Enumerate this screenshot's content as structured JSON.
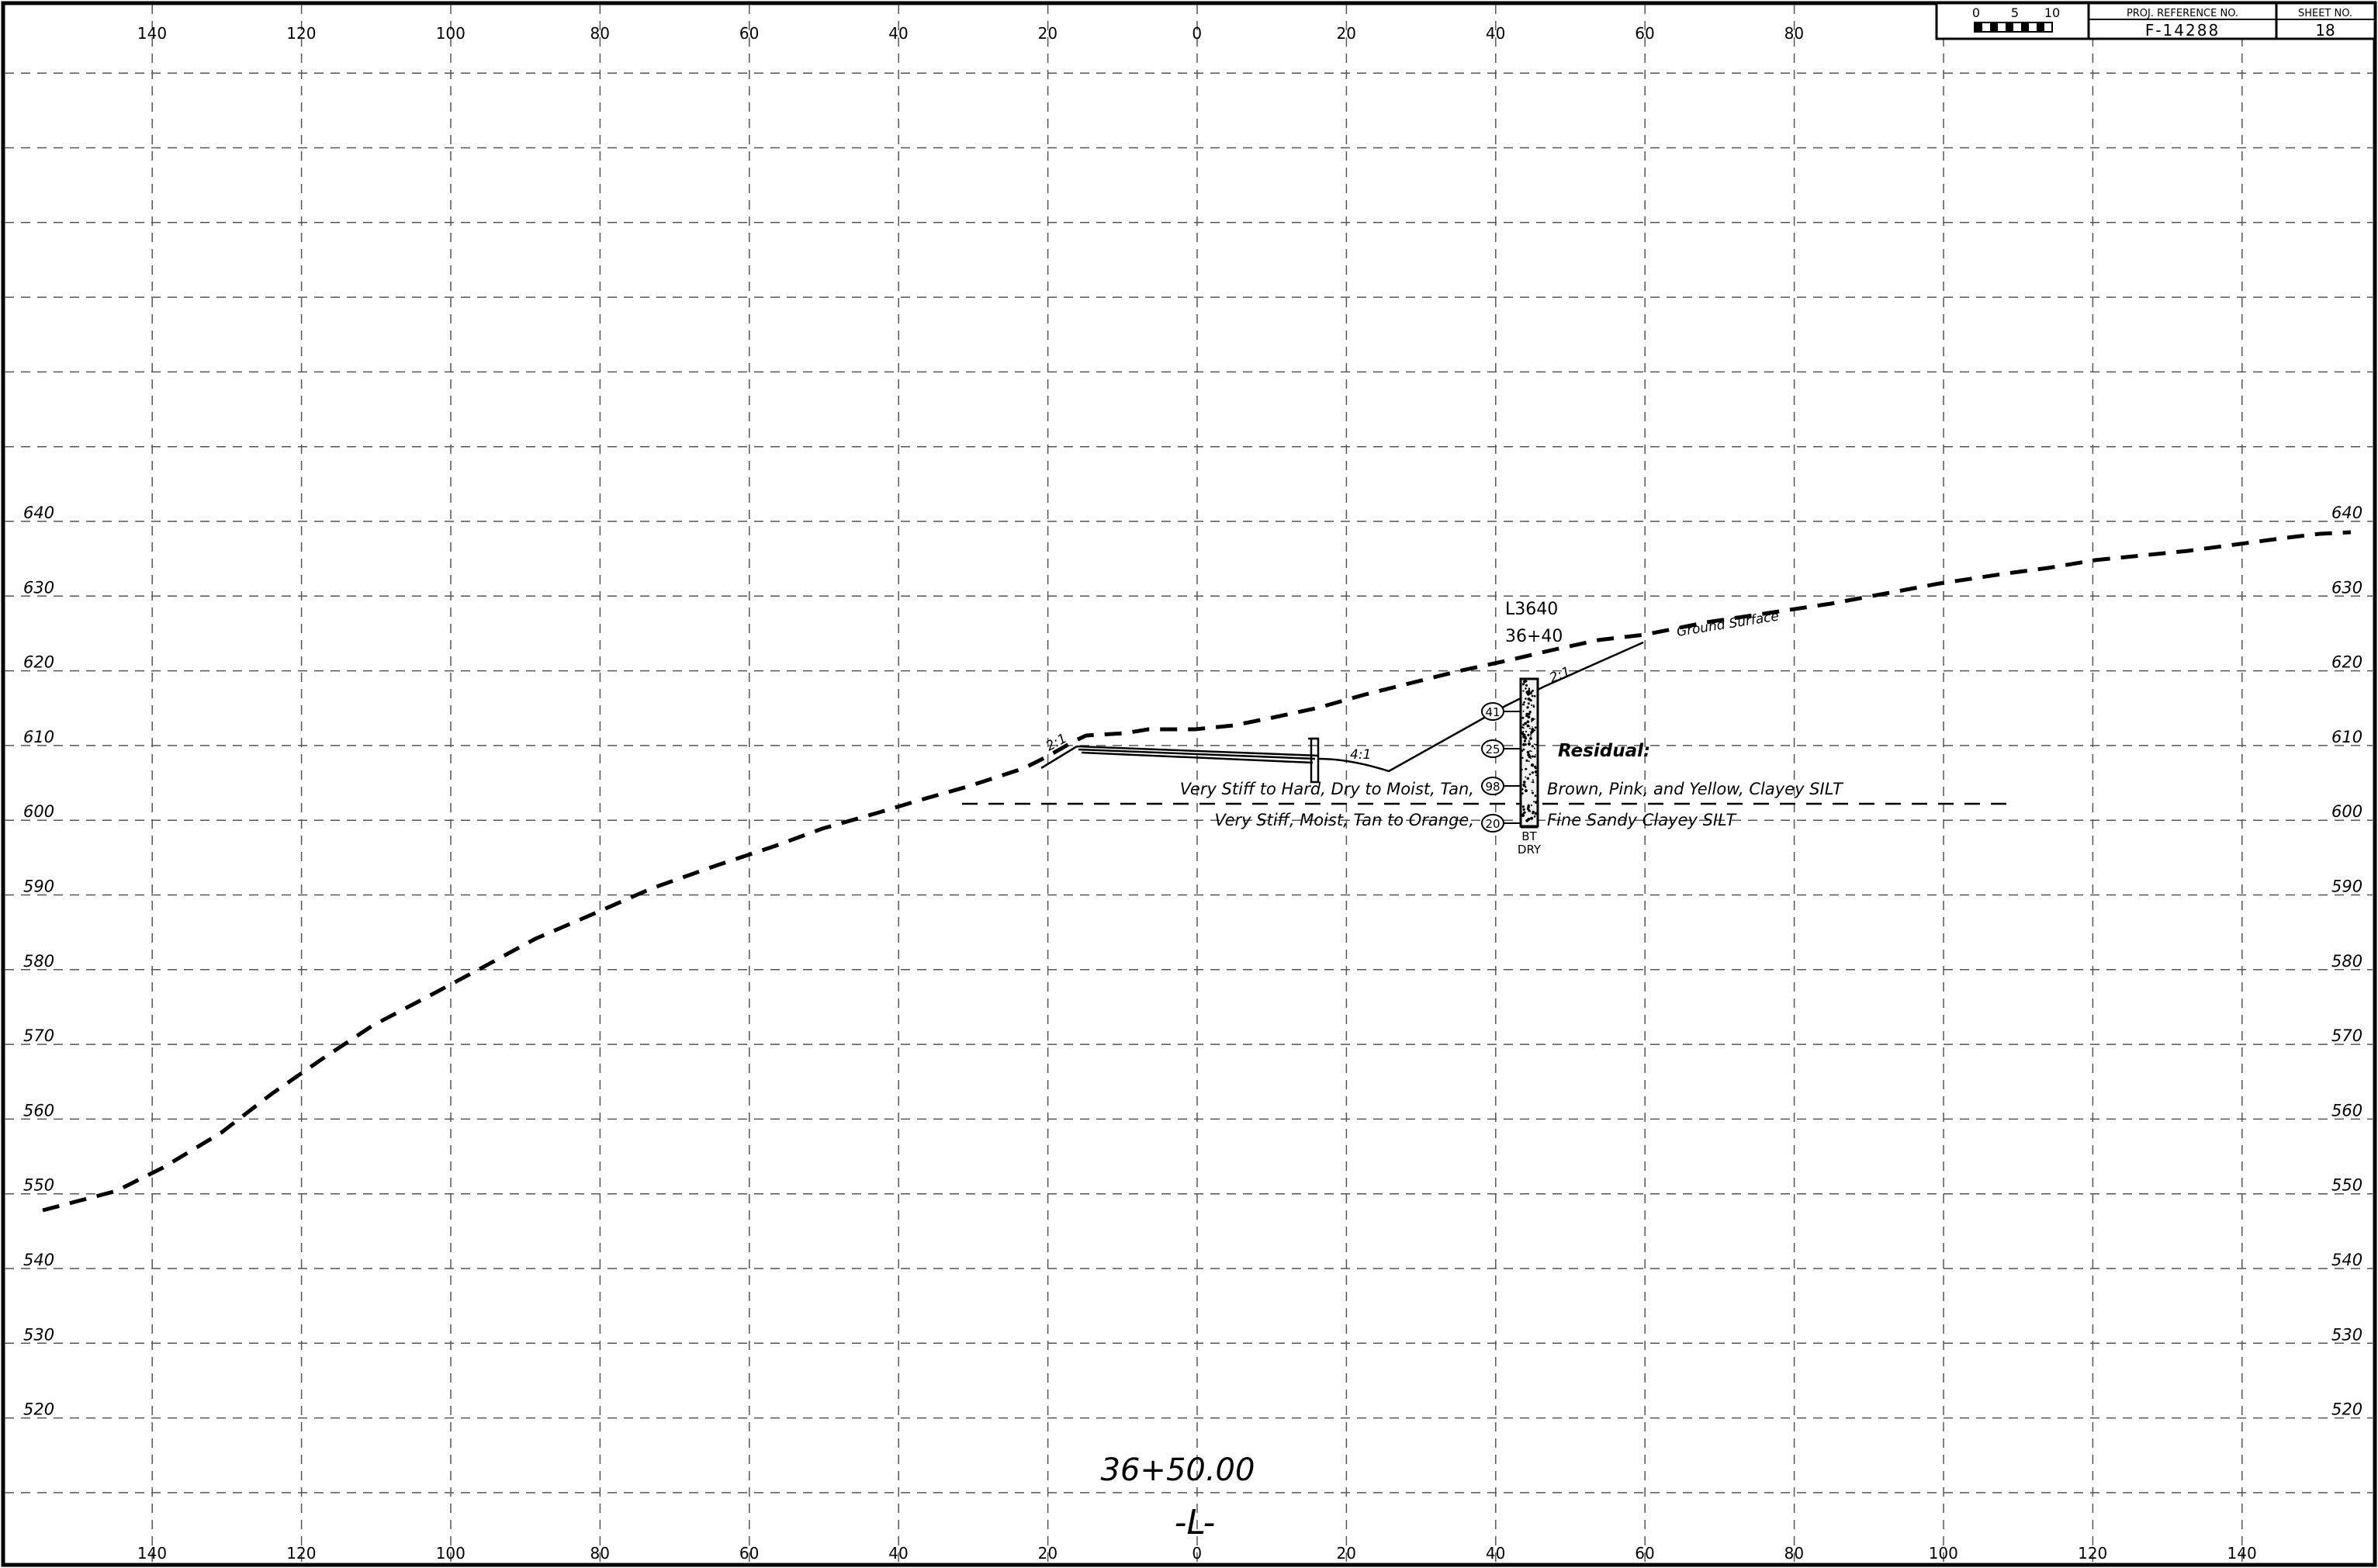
{
  "title_block": {
    "scale_labels": [
      "0",
      "5",
      "10"
    ],
    "proj_ref_header": "PROJ. REFERENCE NO.",
    "proj_ref_value": "F-14288",
    "sheet_no_header": "SHEET NO.",
    "sheet_no_value": "18"
  },
  "axes": {
    "offset_labels": [
      "140",
      "120",
      "100",
      "80",
      "60",
      "40",
      "20",
      "0",
      "20",
      "40",
      "60",
      "80",
      "100",
      "120",
      "140"
    ],
    "elevation_labels": [
      "640",
      "630",
      "620",
      "610",
      "600",
      "590",
      "580",
      "570",
      "560",
      "550",
      "540",
      "530",
      "520"
    ]
  },
  "section": {
    "station": "36+50.00",
    "alignment": "-L-"
  },
  "boring": {
    "id": "L3640",
    "station": "36+40",
    "bottom_label_1": "BT",
    "bottom_label_2": "DRY",
    "blow_counts": [
      "41",
      "25",
      "98",
      "20"
    ]
  },
  "annotations": {
    "ground_surface": "Ground Surface",
    "residual_heading": "Residual:",
    "layer1_left": "Very Stiff to Hard, Dry to Moist, Tan,",
    "layer1_right": "Brown, Pink, and Yellow, Clayey SILT",
    "layer2_left": "Very Stiff, Moist, Tan to Orange,",
    "layer2_right": "Fine Sandy Clayey SILT",
    "slope_21_left": "2:1",
    "slope_41": "4:1",
    "slope_21_right": "2:1"
  },
  "colors": {
    "ink": "#000000",
    "grid": "#555555",
    "paper": "#ffffff"
  }
}
